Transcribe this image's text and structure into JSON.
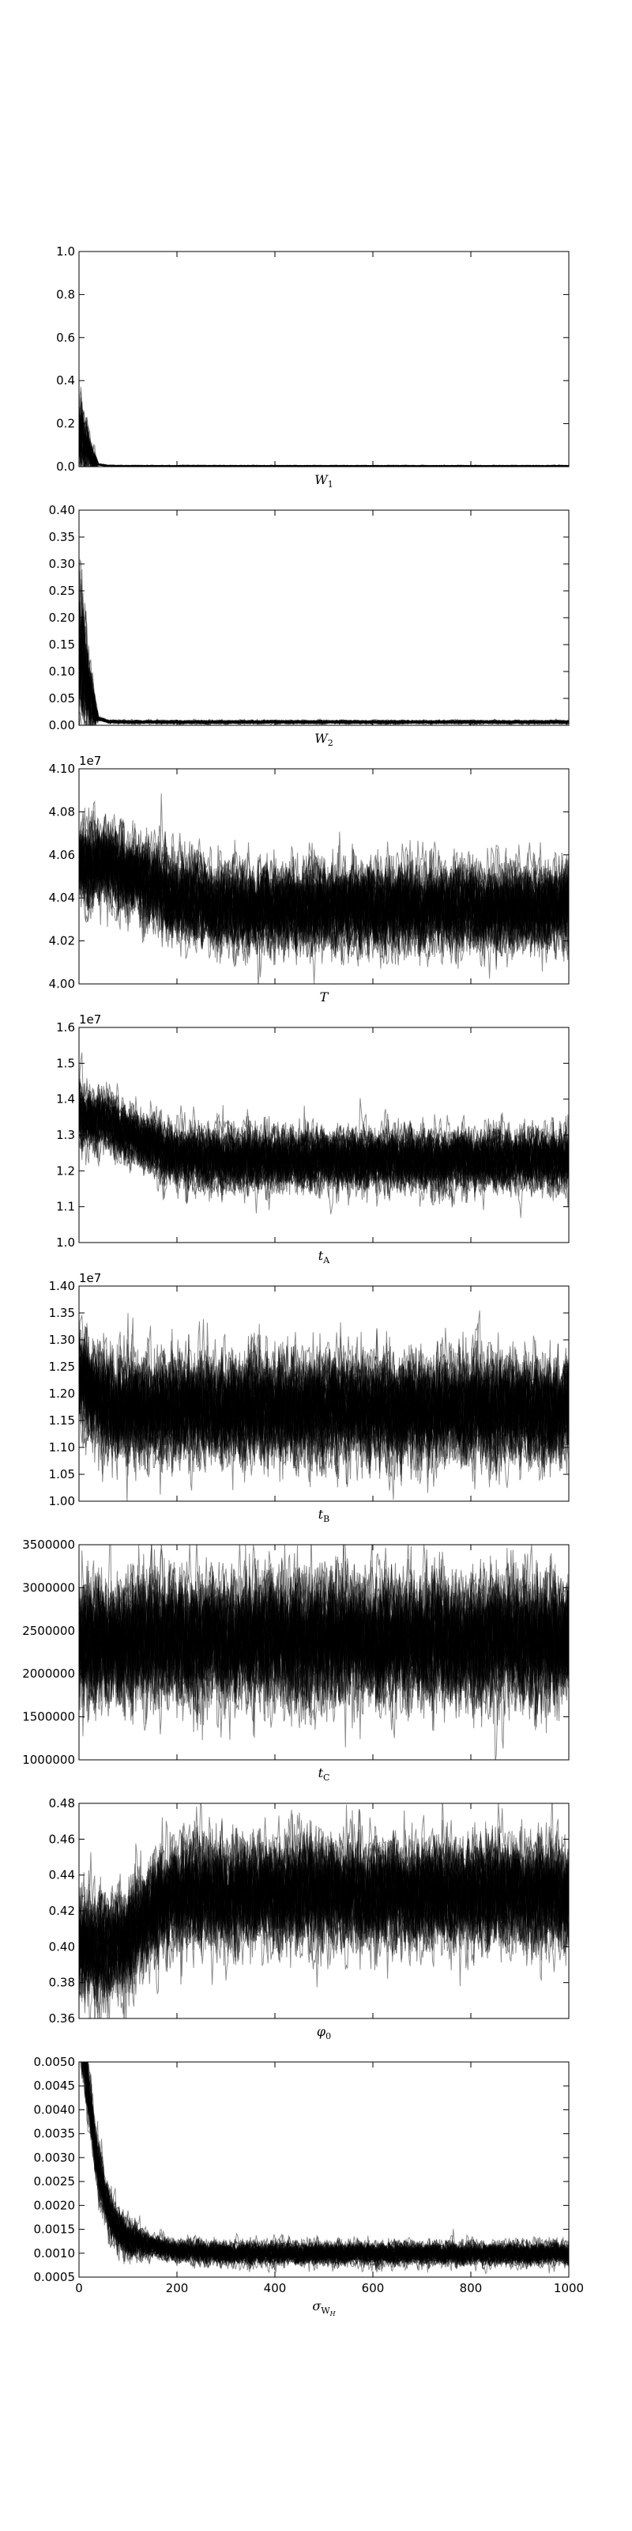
{
  "chart_data": [
    {
      "type": "line",
      "title": "",
      "xlabel": "W",
      "xlabel_sub": "1",
      "ylabel": "",
      "xlim": [
        0,
        1000
      ],
      "ylim": [
        0.0,
        1.0
      ],
      "xticks": [
        "0",
        "200",
        "400",
        "600",
        "800",
        "1000"
      ],
      "show_xtick_labels": false,
      "yticks": [
        0.0,
        0.2,
        0.4,
        0.6,
        0.8,
        1.0
      ],
      "ytick_labels": [
        "0.0",
        "0.2",
        "0.4",
        "0.6",
        "0.8",
        "1.0"
      ],
      "offset_text": "",
      "grid": false,
      "series_count": 50,
      "trace_profile": {
        "x": [
          0,
          5,
          10,
          20,
          30,
          40,
          60,
          100,
          1000
        ],
        "y": [
          0.15,
          0.15,
          0.12,
          0.08,
          0.04,
          0.01,
          0.004,
          0.003,
          0.003
        ]
      },
      "noise_amplitude": [
        0.12,
        0.002
      ],
      "noise_decay_steps": 40,
      "clip": true,
      "line_color": "#000000"
    },
    {
      "type": "line",
      "title": "",
      "xlabel": "W",
      "xlabel_sub": "2",
      "ylabel": "",
      "xlim": [
        0,
        1000
      ],
      "ylim": [
        0.0,
        0.4
      ],
      "xticks": [
        "0",
        "200",
        "400",
        "600",
        "800",
        "1000"
      ],
      "show_xtick_labels": false,
      "yticks": [
        0.0,
        0.05,
        0.1,
        0.15,
        0.2,
        0.25,
        0.3,
        0.35,
        0.4
      ],
      "ytick_labels": [
        "0.00",
        "0.05",
        "0.10",
        "0.15",
        "0.20",
        "0.25",
        "0.30",
        "0.35",
        "0.40"
      ],
      "offset_text": "",
      "grid": false,
      "series_count": 50,
      "trace_profile": {
        "x": [
          0,
          5,
          10,
          20,
          30,
          40,
          60,
          100,
          1000
        ],
        "y": [
          0.12,
          0.12,
          0.1,
          0.06,
          0.03,
          0.012,
          0.007,
          0.006,
          0.006
        ]
      },
      "noise_amplitude": [
        0.1,
        0.002
      ],
      "noise_decay_steps": 40,
      "clip": true,
      "line_color": "#000000"
    },
    {
      "type": "line",
      "title": "",
      "xlabel": "T",
      "xlabel_sub": "",
      "ylabel": "",
      "xlim": [
        0,
        1000
      ],
      "ylim": [
        40000000,
        41000000
      ],
      "xticks": [
        "0",
        "200",
        "400",
        "600",
        "800",
        "1000"
      ],
      "show_xtick_labels": false,
      "yticks": [
        40000000,
        40200000,
        40400000,
        40600000,
        40800000,
        41000000
      ],
      "ytick_labels": [
        "4.00",
        "4.02",
        "4.04",
        "4.06",
        "4.08",
        "4.10"
      ],
      "offset_text": "1e7",
      "grid": false,
      "series_count": 50,
      "trace_profile": {
        "x": [
          0,
          50,
          100,
          200,
          300,
          1000
        ],
        "y": [
          40550000,
          40550000,
          40500000,
          40400000,
          40350000,
          40350000
        ]
      },
      "noise_amplitude": [
        120000,
        120000
      ],
      "noise_decay_steps": 400,
      "clip": true,
      "line_color": "#000000"
    },
    {
      "type": "line",
      "title": "",
      "xlabel": "t",
      "xlabel_sub": "A",
      "ylabel": "",
      "xlim": [
        0,
        1000
      ],
      "ylim": [
        10000000,
        16000000
      ],
      "xticks": [
        "0",
        "200",
        "400",
        "600",
        "800",
        "1000"
      ],
      "show_xtick_labels": false,
      "yticks": [
        10000000,
        11000000,
        12000000,
        13000000,
        14000000,
        15000000,
        16000000
      ],
      "ytick_labels": [
        "1.0",
        "1.1",
        "1.2",
        "1.3",
        "1.4",
        "1.5",
        "1.6"
      ],
      "offset_text": "1e7",
      "grid": false,
      "series_count": 50,
      "trace_profile": {
        "x": [
          0,
          50,
          100,
          200,
          300,
          1000
        ],
        "y": [
          13500000,
          13400000,
          13000000,
          12400000,
          12300000,
          12300000
        ]
      },
      "noise_amplitude": [
        500000,
        500000
      ],
      "noise_decay_steps": 400,
      "clip": true,
      "line_color": "#000000"
    },
    {
      "type": "line",
      "title": "",
      "xlabel": "t",
      "xlabel_sub": "B",
      "ylabel": "",
      "xlim": [
        0,
        1000
      ],
      "ylim": [
        10000000,
        14000000
      ],
      "xticks": [
        "0",
        "200",
        "400",
        "600",
        "800",
        "1000"
      ],
      "show_xtick_labels": false,
      "yticks": [
        10000000,
        10500000,
        11000000,
        11500000,
        12000000,
        12500000,
        13000000,
        13500000,
        14000000
      ],
      "ytick_labels": [
        "1.00",
        "1.05",
        "1.10",
        "1.15",
        "1.20",
        "1.25",
        "1.30",
        "1.35",
        "1.40"
      ],
      "offset_text": "1e7",
      "grid": false,
      "series_count": 50,
      "trace_profile": {
        "x": [
          0,
          20,
          60,
          1000
        ],
        "y": [
          12300000,
          12000000,
          11700000,
          11650000
        ]
      },
      "noise_amplitude": [
        600000,
        600000
      ],
      "noise_decay_steps": 400,
      "clip": true,
      "line_color": "#000000"
    },
    {
      "type": "line",
      "title": "",
      "xlabel": "t",
      "xlabel_sub": "C",
      "ylabel": "",
      "xlim": [
        0,
        1000
      ],
      "ylim": [
        1000000,
        3500000
      ],
      "xticks": [
        "0",
        "200",
        "400",
        "600",
        "800",
        "1000"
      ],
      "show_xtick_labels": false,
      "yticks": [
        1000000,
        1500000,
        2000000,
        2500000,
        3000000,
        3500000
      ],
      "ytick_labels": [
        "1000000",
        "1500000",
        "2000000",
        "2500000",
        "3000000",
        "3500000"
      ],
      "offset_text": "",
      "grid": false,
      "series_count": 50,
      "trace_profile": {
        "x": [
          0,
          1000
        ],
        "y": [
          2400000,
          2400000
        ]
      },
      "noise_amplitude": [
        450000,
        450000
      ],
      "noise_decay_steps": 400,
      "clip": true,
      "line_color": "#000000"
    },
    {
      "type": "line",
      "title": "",
      "xlabel": "φ",
      "xlabel_sub": "0",
      "ylabel": "",
      "xlim": [
        0,
        1000
      ],
      "ylim": [
        0.36,
        0.48
      ],
      "xticks": [
        "0",
        "200",
        "400",
        "600",
        "800",
        "1000"
      ],
      "show_xtick_labels": false,
      "yticks": [
        0.36,
        0.38,
        0.4,
        0.42,
        0.44,
        0.46,
        0.48
      ],
      "ytick_labels": [
        "0.36",
        "0.38",
        "0.40",
        "0.42",
        "0.44",
        "0.46",
        "0.48"
      ],
      "offset_text": "",
      "grid": false,
      "series_count": 50,
      "trace_profile": {
        "x": [
          0,
          50,
          100,
          150,
          200,
          300,
          1000
        ],
        "y": [
          0.4,
          0.4,
          0.405,
          0.42,
          0.43,
          0.43,
          0.43
        ]
      },
      "noise_amplitude": [
        0.018,
        0.018
      ],
      "noise_decay_steps": 400,
      "clip": true,
      "line_color": "#000000"
    },
    {
      "type": "line",
      "title": "",
      "xlabel": "σ",
      "xlabel_sub": "W",
      "xlabel_subsub": "H",
      "ylabel": "",
      "xlim": [
        0,
        1000
      ],
      "ylim": [
        0.0005,
        0.005
      ],
      "xticks": [
        "0",
        "200",
        "400",
        "600",
        "800",
        "1000"
      ],
      "show_xtick_labels": true,
      "yticks": [
        0.0005,
        0.001,
        0.0015,
        0.002,
        0.0025,
        0.003,
        0.0035,
        0.004,
        0.0045,
        0.005
      ],
      "ytick_labels": [
        "0.0005",
        "0.0010",
        "0.0015",
        "0.0020",
        "0.0025",
        "0.0030",
        "0.0035",
        "0.0040",
        "0.0045",
        "0.0050"
      ],
      "offset_text": "",
      "grid": false,
      "series_count": 50,
      "trace_profile": {
        "x": [
          0,
          10,
          20,
          30,
          40,
          60,
          80,
          100,
          150,
          200,
          300,
          1000
        ],
        "y": [
          0.006,
          0.0052,
          0.0043,
          0.0035,
          0.0027,
          0.0019,
          0.0015,
          0.0013,
          0.00115,
          0.00105,
          0.001,
          0.001
        ]
      },
      "noise_amplitude": [
        0.00045,
        0.00015
      ],
      "noise_decay_steps": 150,
      "clip": true,
      "line_color": "#000000"
    }
  ]
}
